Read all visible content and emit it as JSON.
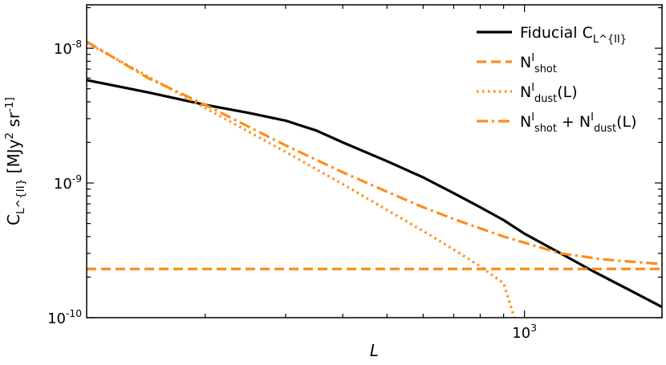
{
  "chart_data": {
    "type": "line",
    "xscale": "log",
    "yscale": "log",
    "xlim": [
      110,
      2000
    ],
    "ylim": [
      1e-10,
      2.1e-08
    ],
    "xlabel": "L",
    "ylabel": "C_L^{II} [MJy^2 sr^-1]",
    "xticks": [
      {
        "value": 1000,
        "label": "10^3"
      }
    ],
    "yticks": [
      {
        "value": 1e-10,
        "label": "10^-10"
      },
      {
        "value": 1e-09,
        "label": "10^-9"
      },
      {
        "value": 1e-08,
        "label": "10^-8"
      }
    ],
    "legend_position": "top-right",
    "grid": false,
    "series": [
      {
        "name": "Fiducial C_L^{II}",
        "color": "#000000",
        "style": "solid",
        "x": [
          110,
          150,
          200,
          250,
          300,
          350,
          400,
          500,
          600,
          700,
          800,
          900,
          1000,
          1200,
          1400,
          1700,
          2000
        ],
        "y": [
          5.8e-09,
          4.7e-09,
          3.8e-09,
          3.3e-09,
          2.9e-09,
          2.45e-09,
          2e-09,
          1.45e-09,
          1.1e-09,
          8.4e-10,
          6.6e-10,
          5.3e-10,
          4.2e-10,
          3e-10,
          2.25e-10,
          1.6e-10,
          1.2e-10
        ]
      },
      {
        "name": "N^{I}_{shot}",
        "color": "#ff8c1a",
        "style": "dashed",
        "x": [
          110,
          2000
        ],
        "y": [
          2.3e-10,
          2.3e-10
        ]
      },
      {
        "name": "N^{I}_{dust}(L)",
        "color": "#ff8c1a",
        "style": "dotted",
        "x": [
          110,
          200,
          300,
          400,
          500,
          600,
          700,
          800,
          900,
          950
        ],
        "y": [
          1.1e-08,
          3.6e-09,
          1.7e-09,
          9.8e-10,
          6.3e-10,
          4.4e-10,
          3.2e-10,
          2.4e-10,
          1.8e-10,
          1e-10
        ]
      },
      {
        "name": "N^{I}_{shot} + N^{I}_{dust}(L)",
        "color": "#ff8c1a",
        "style": "dashdot",
        "x": [
          110,
          150,
          200,
          300,
          400,
          500,
          600,
          700,
          800,
          900,
          1000,
          1200,
          1500,
          2000
        ],
        "y": [
          1.12e-08,
          6e-09,
          3.8e-09,
          1.9e-09,
          1.2e-09,
          8.6e-10,
          6.6e-10,
          5.4e-10,
          4.6e-10,
          4e-10,
          3.6e-10,
          3e-10,
          2.7e-10,
          2.5e-10
        ]
      }
    ]
  }
}
